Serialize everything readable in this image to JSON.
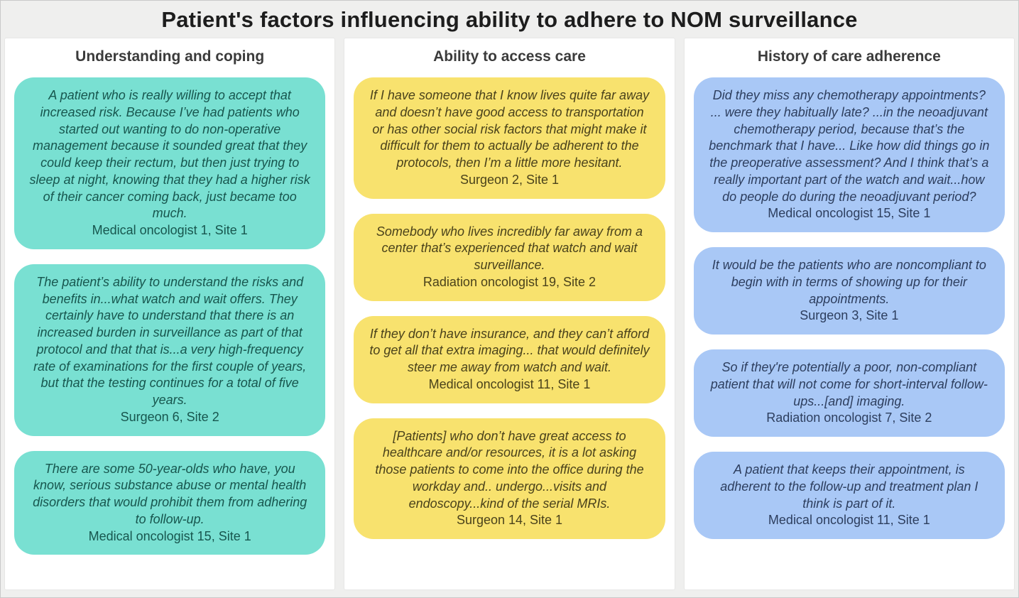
{
  "title": "Patient's factors influencing ability to adhere to NOM surveillance",
  "page_background": "#efefee",
  "panel_background": "#ffffff",
  "columns": [
    {
      "header": "Understanding and coping",
      "box_color": "#79e0d2",
      "text_color": "#17564e",
      "quotes": [
        {
          "text": "A patient who is really willing to accept that increased risk. Because I’ve had patients who started out wanting to do non-operative management because it sounded great that they could keep their rectum, but then just trying to sleep at night, knowing that they had a higher risk of their cancer coming back, just became too much.",
          "attribution": "Medical oncologist 1, Site 1"
        },
        {
          "text": "The patient’s ability to understand the risks and benefits in...what watch and wait offers. They certainly have to understand that there is an increased burden in surveillance as part of that protocol and that that is...a very high-frequency rate of examinations for the first couple of years, but that the testing continues for a total of five years.",
          "attribution": "Surgeon 6, Site 2"
        },
        {
          "text": "There are some 50-year-olds who have, you know, serious substance abuse or mental health disorders that would prohibit them from adhering to follow-up.",
          "attribution": "Medical oncologist 15, Site 1"
        }
      ]
    },
    {
      "header": "Ability to access care",
      "box_color": "#f8e26e",
      "text_color": "#4a421b",
      "quotes": [
        {
          "text": "If I have someone that I know lives quite far away and doesn’t have good access to transportation or has other social risk factors that might make it difficult for them to actually be adherent to the protocols, then I’m a little more hesitant.",
          "attribution": "Surgeon 2, Site 1"
        },
        {
          "text": "Somebody who lives incredibly far away from a center that’s experienced that watch and wait surveillance.",
          "attribution": "Radiation oncologist 19, Site 2"
        },
        {
          "text": "If they don’t have insurance, and they can’t afford to get all that extra imaging... that would definitely steer me away from watch and wait.",
          "attribution": "Medical oncologist 11, Site 1"
        },
        {
          "text": "[Patients]  who don’t have great access to healthcare and/or resources, it is a lot asking those patients to come into the office during the workday and.. undergo...visits and endoscopy...kind of the serial MRIs.",
          "attribution": "Surgeon 14, Site 1"
        }
      ]
    },
    {
      "header": "History of care adherence",
      "box_color": "#a9c8f6",
      "text_color": "#2d3e5e",
      "quotes": [
        {
          "text": "Did they miss any chemotherapy appointments? ... were they habitually late? ...in the neoadjuvant chemotherapy period, because that’s the benchmark that I have... Like how did things go in the preoperative assessment? And I think that’s a really important part of the watch and wait...how do people do during the neoadjuvant period?",
          "attribution": "Medical oncologist 15, Site 1"
        },
        {
          "text": "It would be the patients who are noncompliant to begin with in terms of showing up for their appointments.",
          "attribution": "Surgeon 3, Site 1"
        },
        {
          "text": "So if they're potentially a poor, non-compliant patient that will not come for short-interval follow-ups...[and] imaging.",
          "attribution": "Radiation oncologist 7, Site 2"
        },
        {
          "text": "A patient that keeps their appointment, is adherent to the follow-up and treatment plan I think is part of it.",
          "attribution": "Medical oncologist 11, Site 1"
        }
      ]
    }
  ]
}
